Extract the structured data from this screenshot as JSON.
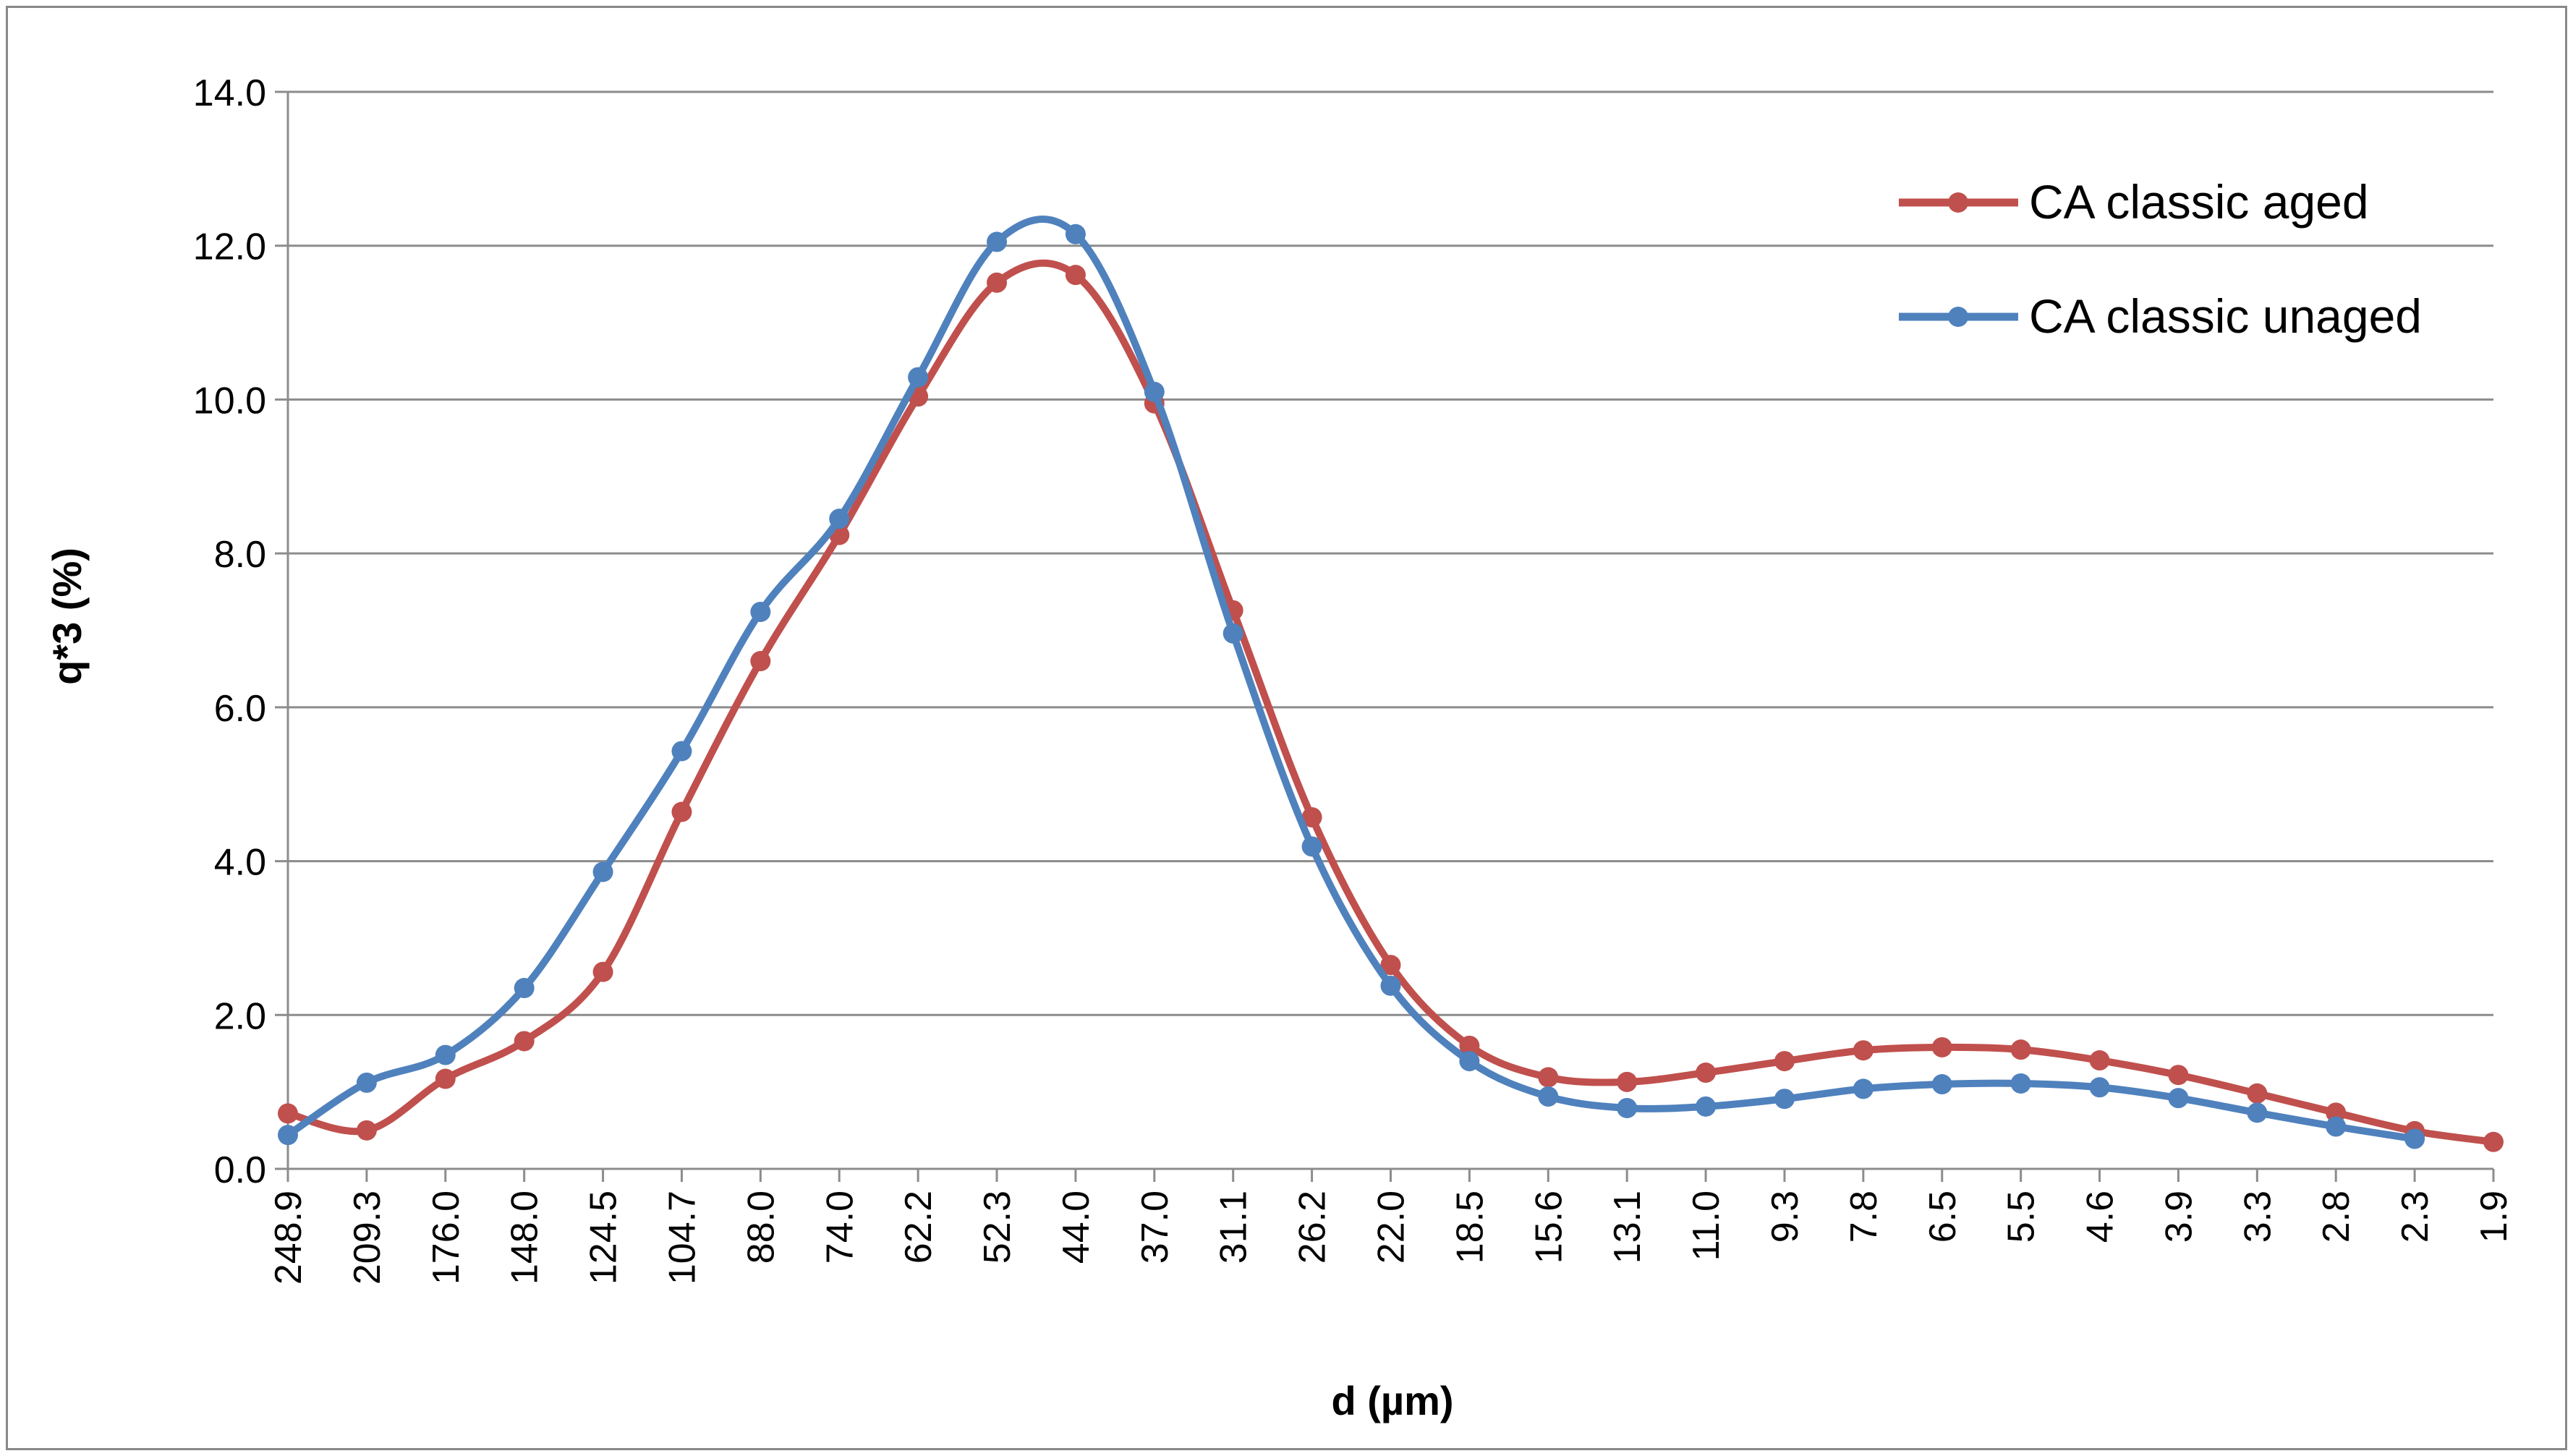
{
  "chart_data": {
    "type": "line",
    "title": "",
    "xlabel": "d (µm)",
    "ylabel": "q*3 (%)",
    "ylim": [
      0,
      14
    ],
    "yticks": [
      "0.0",
      "2.0",
      "4.0",
      "6.0",
      "8.0",
      "10.0",
      "12.0",
      "14.0"
    ],
    "grid": true,
    "legend_position": "top-right",
    "categories": [
      "248.9",
      "209.3",
      "176.0",
      "148.0",
      "124.5",
      "104.7",
      "88.0",
      "74.0",
      "62.2",
      "52.3",
      "44.0",
      "37.0",
      "31.1",
      "26.2",
      "22.0",
      "18.5",
      "15.6",
      "13.1",
      "11.0",
      "9.3",
      "7.8",
      "6.5",
      "5.5",
      "4.6",
      "3.9",
      "3.3",
      "2.8",
      "2.3",
      "1.9"
    ],
    "series": [
      {
        "name": "CA classic aged",
        "color": "#C0504D",
        "values": [
          0.72,
          0.5,
          1.17,
          1.66,
          2.56,
          4.64,
          6.6,
          8.24,
          10.04,
          11.52,
          11.62,
          9.95,
          7.26,
          4.57,
          2.65,
          1.6,
          1.19,
          1.13,
          1.25,
          1.4,
          1.54,
          1.58,
          1.55,
          1.41,
          1.22,
          0.98,
          0.73,
          0.49,
          0.35
        ]
      },
      {
        "name": "CA classic unaged",
        "color": "#4F81BD",
        "values": [
          0.44,
          1.12,
          1.48,
          2.35,
          3.86,
          5.43,
          7.24,
          8.45,
          10.29,
          12.05,
          12.15,
          10.1,
          6.96,
          4.19,
          2.38,
          1.4,
          0.94,
          0.79,
          0.81,
          0.91,
          1.04,
          1.1,
          1.11,
          1.06,
          0.92,
          0.73,
          0.55,
          0.39,
          null
        ]
      }
    ]
  }
}
